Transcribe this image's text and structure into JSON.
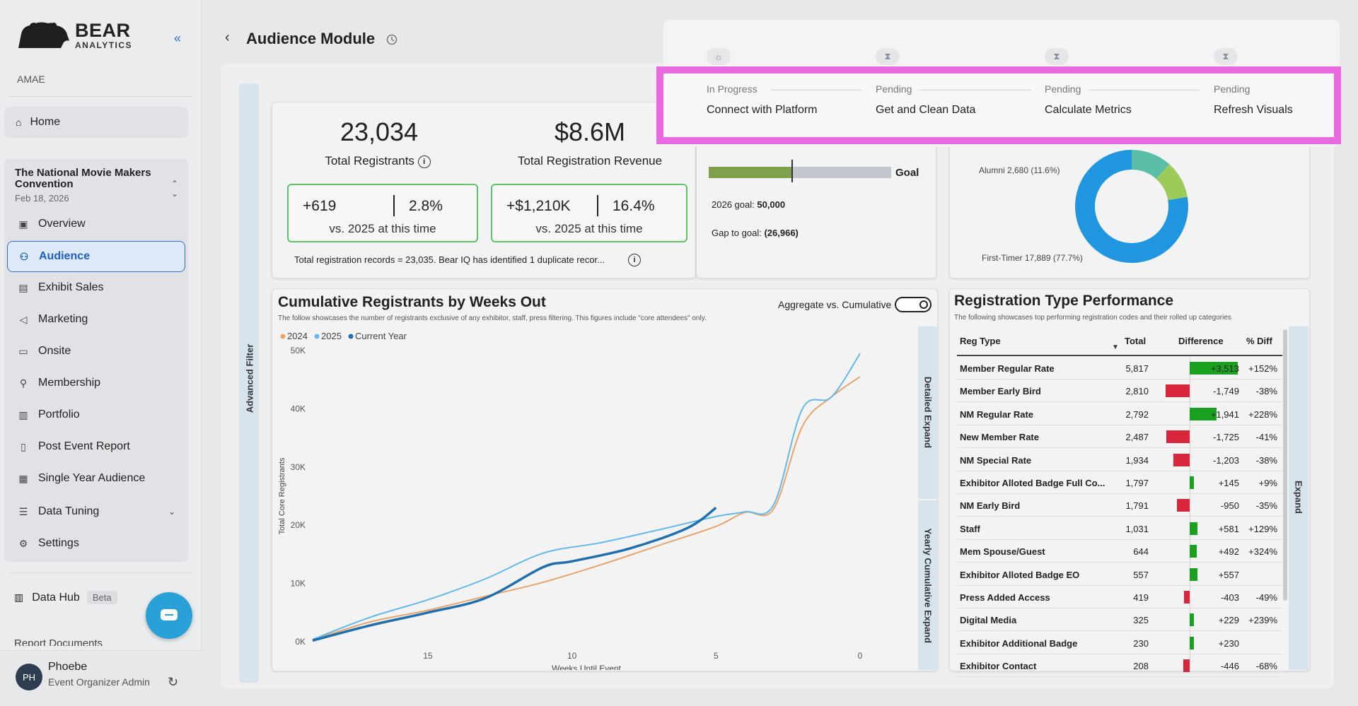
{
  "brand": {
    "name": "BEAR",
    "sub": "ANALYTICS"
  },
  "sidebar": {
    "org": "AMAE",
    "home": "Home",
    "event": {
      "name": "The National Movie Makers Convention",
      "date": "Feb 18, 2026"
    },
    "items": [
      {
        "label": "Overview",
        "icon": "overview-icon"
      },
      {
        "label": "Audience",
        "icon": "people-icon",
        "active": true
      },
      {
        "label": "Exhibit Sales",
        "icon": "exhibit-icon"
      },
      {
        "label": "Marketing",
        "icon": "megaphone-icon"
      },
      {
        "label": "Onsite",
        "icon": "badge-icon"
      },
      {
        "label": "Membership",
        "icon": "member-icon"
      },
      {
        "label": "Portfolio",
        "icon": "portfolio-icon"
      },
      {
        "label": "Post Event Report",
        "icon": "report-icon"
      },
      {
        "label": "Single Year Audience",
        "icon": "grid-icon"
      },
      {
        "label": "Data Tuning",
        "icon": "sliders-icon"
      },
      {
        "label": "Settings",
        "icon": "gear-icon"
      }
    ],
    "data_hub": "Data Hub",
    "beta": "Beta",
    "report_docs": "Report Documents",
    "user": {
      "initials": "PH",
      "name": "Phoebe",
      "role": "Event Organizer Admin"
    }
  },
  "header": {
    "title": "Audience Module"
  },
  "advanced_filter": "Advanced Filter",
  "kpis": {
    "registrants": {
      "value": "23,034",
      "label": "Total Registrants",
      "delta_abs": "+619",
      "delta_pct": "2.8%",
      "compare": "vs. 2025 at this time"
    },
    "revenue": {
      "value": "$8.6M",
      "label": "Total Registration Revenue",
      "delta_abs": "+$1,210K",
      "delta_pct": "16.4%",
      "compare": "vs. 2025 at this time"
    },
    "note": "Total registration records = 23,035. Bear IQ has identified 1 duplicate recor..."
  },
  "goal": {
    "goal_label": "Goal",
    "goal_text": "2026 goal:",
    "goal_value": "50,000",
    "gap_text": "Gap to goal:",
    "gap_value": "(26,966)",
    "progress": 0.461
  },
  "donut": {
    "alumni_label": "Alumni 2,680 (11.6%)",
    "first_label": "First-Timer 17,889 (77.7%)",
    "segments": [
      {
        "name": "First-Timer",
        "pct": 77.7,
        "color": "#2196e0"
      },
      {
        "name": "Alumni",
        "pct": 11.6,
        "color": "#5bbfa8"
      },
      {
        "name": "Other",
        "pct": 10.7,
        "color": "#9ccb5a"
      }
    ]
  },
  "cumulative": {
    "title": "Cumulative Registrants by Weeks Out",
    "subtitle": "The follow showcases the number of registrants exclusive of any exhibitor, staff, press filtering. This figures include \"core attendees\" only.",
    "toggle_label": "Aggregate vs. Cumulative",
    "detailed_expand": "Detailed Expand",
    "yearly_expand": "Yearly Cumulative Expand"
  },
  "chart_data": {
    "type": "line",
    "xlabel": "Weeks Until Event",
    "ylabel": "Total Core Registrants",
    "xlim": [
      19,
      0
    ],
    "ylim": [
      0,
      50000
    ],
    "x_ticks": [
      15,
      10,
      5,
      0
    ],
    "y_ticks": [
      "0K",
      "10K",
      "20K",
      "30K",
      "40K",
      "50K"
    ],
    "series": [
      {
        "name": "2024",
        "color": "#e8a46a",
        "x": [
          19,
          17,
          15,
          13,
          11,
          9,
          7,
          5,
          4,
          3,
          2,
          1,
          0
        ],
        "y": [
          300,
          3400,
          5400,
          7800,
          10200,
          13200,
          16500,
          19800,
          22200,
          22800,
          37000,
          42000,
          45500
        ]
      },
      {
        "name": "2025",
        "color": "#63b8ea",
        "x": [
          19,
          17,
          15,
          13,
          11,
          9,
          7,
          5,
          4,
          3,
          2,
          1,
          0
        ],
        "y": [
          400,
          4200,
          7200,
          10800,
          15200,
          17000,
          19200,
          21500,
          22300,
          23500,
          40000,
          42000,
          49500
        ]
      },
      {
        "name": "Current Year",
        "color": "#1f6fae",
        "x": [
          19,
          17,
          15,
          13,
          11,
          10,
          8,
          6,
          5
        ],
        "y": [
          200,
          2800,
          5000,
          7500,
          12800,
          13800,
          16000,
          19500,
          23000
        ]
      }
    ]
  },
  "reg_type": {
    "title": "Registration Type Performance",
    "subtitle": "The following showcases top performing registration codes and their rolled up categories",
    "headers": {
      "type": "Reg Type",
      "total": "Total",
      "diff": "Difference",
      "pct": "% Diff"
    },
    "expand": "Expand",
    "rows": [
      {
        "name": "Member Regular Rate",
        "total": "5,817",
        "diff": "+3,513",
        "pct": "+152%",
        "value": 3513
      },
      {
        "name": "Member Early Bird",
        "total": "2,810",
        "diff": "-1,749",
        "pct": "-38%",
        "value": -1749
      },
      {
        "name": "NM Regular Rate",
        "total": "2,792",
        "diff": "+1,941",
        "pct": "+228%",
        "value": 1941
      },
      {
        "name": "New Member Rate",
        "total": "2,487",
        "diff": "-1,725",
        "pct": "-41%",
        "value": -1725
      },
      {
        "name": "NM Special Rate",
        "total": "1,934",
        "diff": "-1,203",
        "pct": "-38%",
        "value": -1203
      },
      {
        "name": "Exhibitor Alloted Badge Full Co...",
        "total": "1,797",
        "diff": "+145",
        "pct": "+9%",
        "value": 145
      },
      {
        "name": "NM Early Bird",
        "total": "1,791",
        "diff": "-950",
        "pct": "-35%",
        "value": -950
      },
      {
        "name": "Staff",
        "total": "1,031",
        "diff": "+581",
        "pct": "+129%",
        "value": 581
      },
      {
        "name": "Mem Spouse/Guest",
        "total": "644",
        "diff": "+492",
        "pct": "+324%",
        "value": 492
      },
      {
        "name": "Exhibitor Alloted Badge EO",
        "total": "557",
        "diff": "+557",
        "pct": "",
        "value": 557
      },
      {
        "name": "Press Added Access",
        "total": "419",
        "diff": "-403",
        "pct": "-49%",
        "value": -403
      },
      {
        "name": "Digital Media",
        "total": "325",
        "diff": "+229",
        "pct": "+239%",
        "value": 229
      },
      {
        "name": "Exhibitor Additional Badge",
        "total": "230",
        "diff": "+230",
        "pct": "",
        "value": 230
      },
      {
        "name": "Exhibitor Contact",
        "total": "208",
        "diff": "-446",
        "pct": "-68%",
        "value": -446
      }
    ]
  },
  "progress_steps": [
    {
      "status": "In Progress",
      "label": "Connect with Platform",
      "icon": "spinner-icon"
    },
    {
      "status": "Pending",
      "label": "Get and Clean Data",
      "icon": "hourglass-icon"
    },
    {
      "status": "Pending",
      "label": "Calculate Metrics",
      "icon": "hourglass-icon"
    },
    {
      "status": "Pending",
      "label": "Refresh Visuals",
      "icon": "hourglass-icon"
    }
  ],
  "colors": {
    "accent": "#2f6fd3",
    "highlight": "#ea6ae0",
    "positive": "#1aa11f",
    "negative": "#d8273a",
    "goal_fill": "#80a14c"
  }
}
